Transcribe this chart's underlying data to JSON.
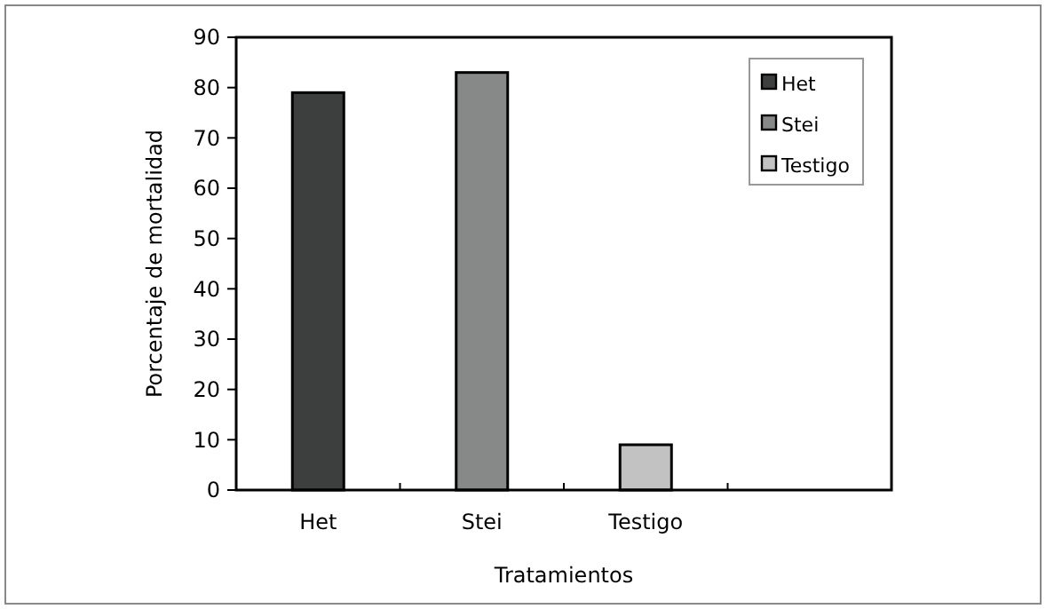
{
  "chart_data": {
    "type": "bar",
    "xlabel": "Tratamientos",
    "ylabel": "Porcentaje de mortalidad",
    "categories": [
      "Het",
      "Stei",
      "Testigo",
      null
    ],
    "series": [
      {
        "name": "Het",
        "color": "#3d3f3f",
        "values": [
          79,
          null,
          null,
          null
        ]
      },
      {
        "name": "Stei",
        "color": "#878888",
        "values": [
          null,
          83,
          null,
          null
        ]
      },
      {
        "name": "Testigo",
        "color": "#c2c2c2",
        "values": [
          null,
          null,
          9,
          null
        ]
      }
    ],
    "ylim": [
      0,
      90
    ],
    "yticks": [
      0,
      10,
      20,
      30,
      40,
      50,
      60,
      70,
      80,
      90
    ],
    "legend": "top right",
    "grid": false
  }
}
